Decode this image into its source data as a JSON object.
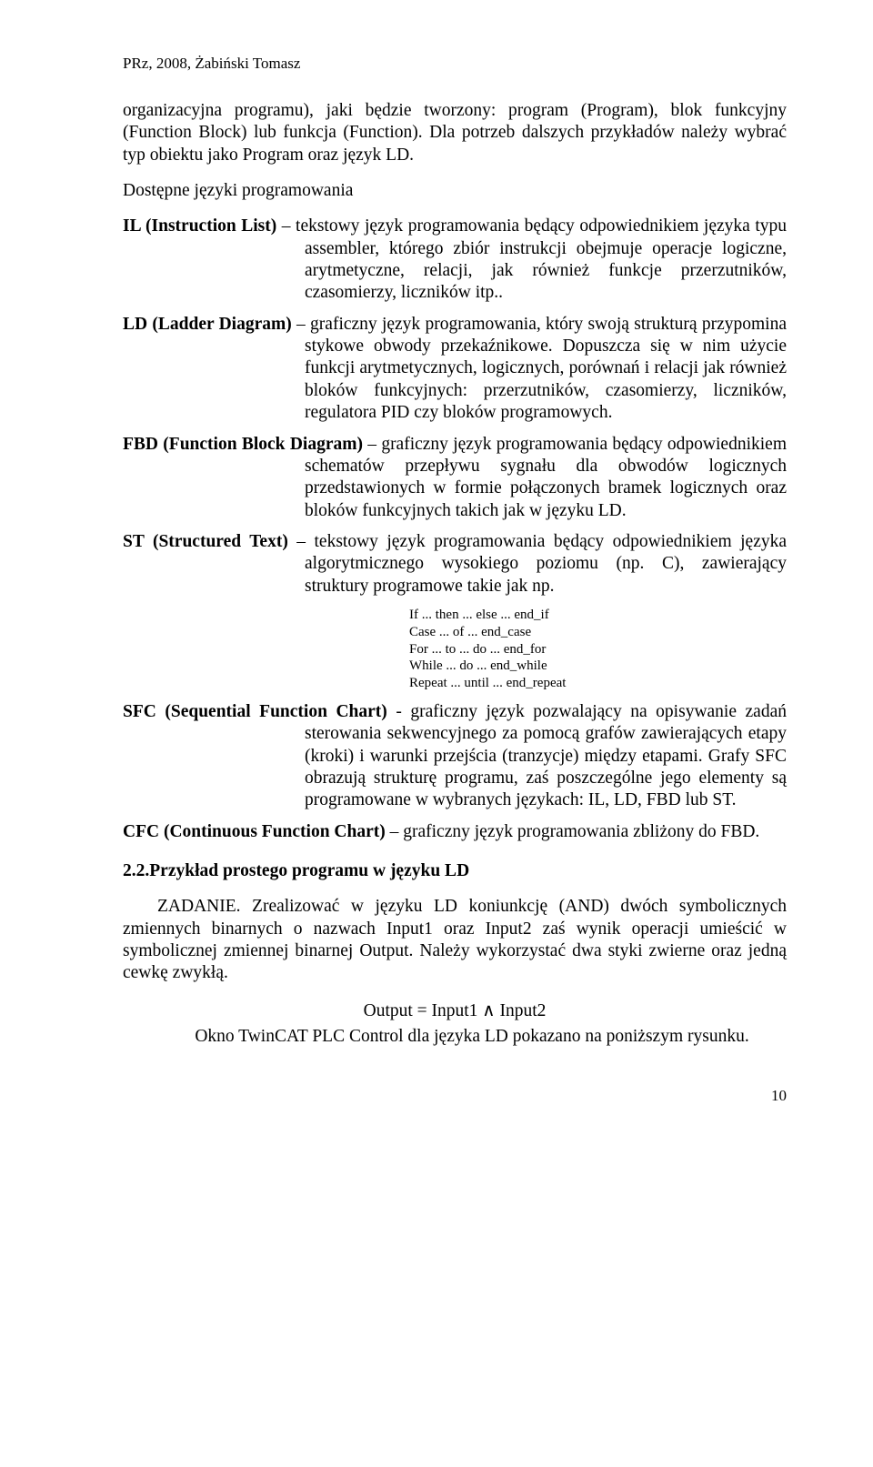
{
  "page": {
    "header": "PRz, 2008, Żabiński Tomasz",
    "intro": "organizacyjna programu), jaki będzie tworzony: program (Program), blok funkcyjny (Function Block) lub funkcja (Function). Dla potrzeb dalszych przykładów należy wybrać typ obiektu jako Program oraz język LD.",
    "langs_title": "Dostępne języki programowania",
    "il": {
      "head": "IL (Instruction List)",
      "body": " – tekstowy język programowania będący odpowiednikiem języka typu assembler, którego zbiór instrukcji obejmuje operacje logiczne, arytmetyczne, relacji, jak również funkcje przerzutników, czasomierzy, liczników itp.."
    },
    "ld": {
      "head": "LD (Ladder Diagram)",
      "body": " – graficzny język programowania, który swoją strukturą przypomina stykowe obwody przekaźnikowe. Dopuszcza się w nim użycie funkcji arytmetycznych, logicznych, porównań i relacji jak również bloków funkcyjnych: przerzutników, czasomierzy, liczników, regulatora PID czy bloków programowych."
    },
    "fbd": {
      "head": "FBD (Function Block Diagram)",
      "body": " – graficzny język programowania będący odpowiednikiem schematów przepływu sygnału dla obwodów logicznych przedstawionych w formie połączonych bramek logicznych oraz bloków funkcyjnych takich jak w języku LD."
    },
    "st": {
      "head": "ST (Structured Text)",
      "body": " – tekstowy język programowania będący odpowiednikiem języka algorytmicznego wysokiego poziomu (np. C), zawierający struktury programowe takie jak np."
    },
    "code": {
      "l1": "If ... then ... else ... end_if",
      "l2": "Case ... of ... end_case",
      "l3": "For ... to ... do ... end_for",
      "l4": "While ... do ... end_while",
      "l5": "Repeat ... until ... end_repeat"
    },
    "sfc": {
      "head": "SFC (Sequential Function Chart)",
      "body": " - graficzny język pozwalający na opisywanie zadań sterowania sekwencyjnego za pomocą grafów zawierających etapy (kroki) i warunki przejścia (tranzycje) między etapami. Grafy SFC obrazują strukturę programu, zaś poszczególne jego elementy są programowane w wybranych językach: IL, LD, FBD lub ST."
    },
    "cfc": {
      "head": "CFC (Continuous Function Chart)",
      "body": " – graficzny język programowania zbliżony do FBD."
    },
    "example_title": "2.2.Przykład prostego programu w języku LD",
    "example_para": "ZADANIE. Zrealizować w języku LD koniunkcję (AND) dwóch symbolicznych zmiennych binarnych o nazwach Input1 oraz Input2 zaś wynik operacji umieścić w symbolicznej zmiennej binarnej Output. Należy wykorzystać dwa styki zwierne oraz jedną cewkę zwykłą.",
    "equation": "Output = Input1 ∧ Input2",
    "eq_caption": "Okno TwinCAT PLC Control dla języka LD pokazano na poniższym rysunku.",
    "page_number": "10"
  }
}
